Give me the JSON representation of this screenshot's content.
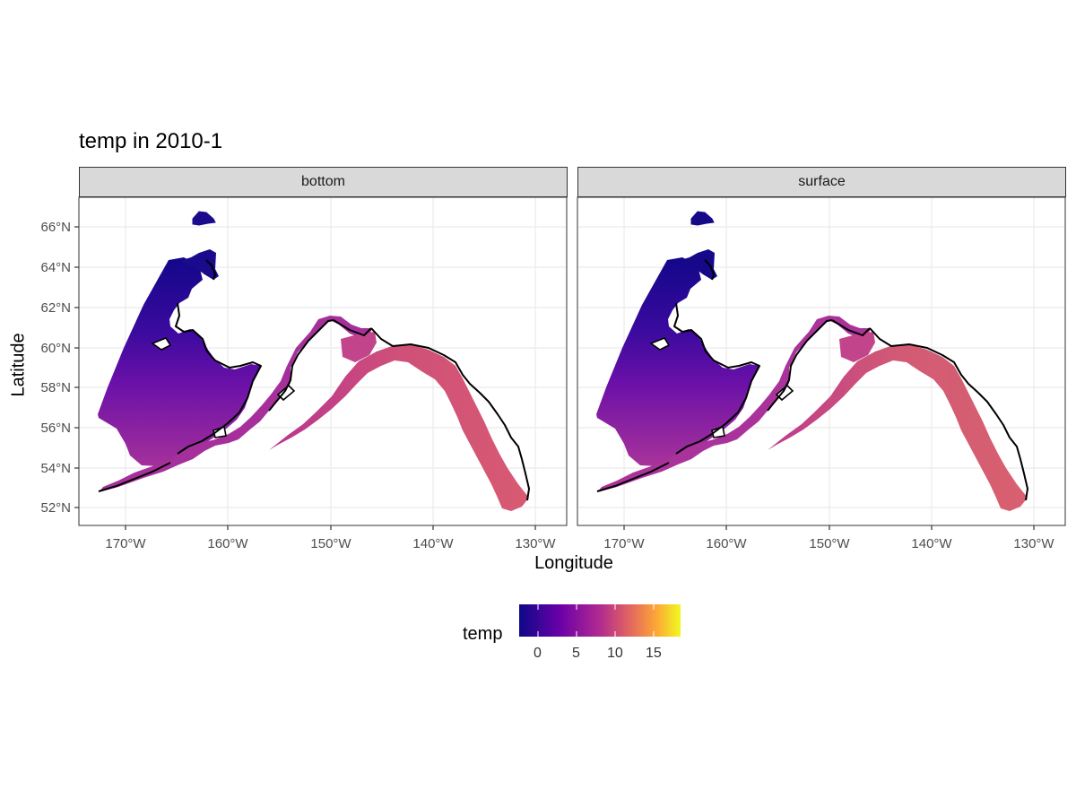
{
  "title": "temp in 2010-1",
  "facets": [
    {
      "label": "bottom"
    },
    {
      "label": "surface"
    }
  ],
  "axes": {
    "x_title": "Longitude",
    "y_title": "Latitude",
    "x_ticks": [
      "170°W",
      "160°W",
      "150°W",
      "140°W",
      "130°W"
    ],
    "y_ticks": [
      "66°N",
      "64°N",
      "62°N",
      "60°N",
      "58°N",
      "56°N",
      "54°N",
      "52°N"
    ]
  },
  "legend": {
    "title": "temp",
    "ticks": [
      "0",
      "5",
      "10",
      "15"
    ],
    "colors": [
      "#0d0887",
      "#6a00a8",
      "#b12a90",
      "#e16462",
      "#fca636",
      "#f0f921"
    ]
  },
  "map_data": {
    "x_range_deg_w": [
      174.5,
      127.5
    ],
    "y_range_deg_n": [
      51.2,
      67.5
    ],
    "bottom_region_colors": {
      "north": "#1a0a8c",
      "mid": "#6a0fa8",
      "south": "#a5309b",
      "gulf": "#d0557a",
      "edge": "#8a2fb8"
    },
    "surface_region_colors": {
      "north": "#15098a",
      "mid": "#6410a8",
      "south": "#a9339a",
      "gulf": "#d25a75",
      "edge": "#c2467f"
    }
  }
}
